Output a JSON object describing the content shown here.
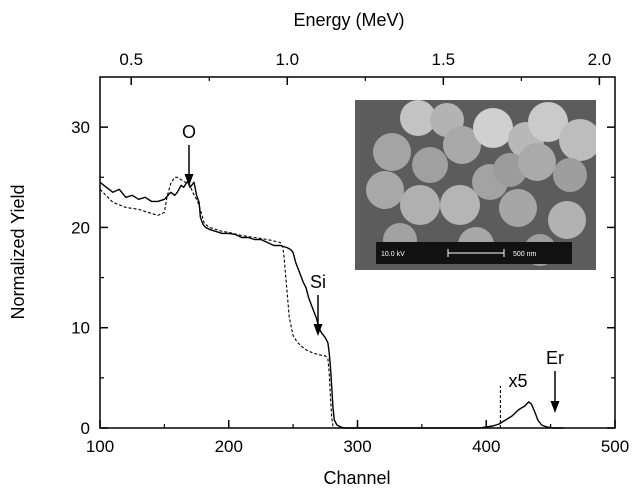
{
  "chart_data": {
    "type": "line",
    "xlabel": "Channel",
    "ylabel": "Normalized Yield",
    "top_axis_label": "Energy (MeV)",
    "xlim": [
      100,
      500
    ],
    "ylim": [
      0,
      35
    ],
    "top_axis_lim": [
      0.4,
      2.05
    ],
    "x_ticks": [
      "100",
      "200",
      "300",
      "400",
      "500"
    ],
    "y_ticks": [
      "0",
      "10",
      "20",
      "30"
    ],
    "top_ticks": [
      "0.5",
      "1.0",
      "1.5",
      "2.0"
    ],
    "grid": false,
    "series": [
      {
        "style": "solid",
        "points": [
          [
            100,
            24.5
          ],
          [
            105,
            24
          ],
          [
            110,
            23.5
          ],
          [
            115,
            23.8
          ],
          [
            120,
            23
          ],
          [
            125,
            23.2
          ],
          [
            130,
            22.8
          ],
          [
            135,
            23
          ],
          [
            140,
            22.6
          ],
          [
            145,
            22.6
          ],
          [
            150,
            22.8
          ],
          [
            155,
            23.5
          ],
          [
            158,
            23.2
          ],
          [
            160,
            23.5
          ],
          [
            163,
            24.2
          ],
          [
            165,
            24
          ],
          [
            168,
            24.6
          ],
          [
            170,
            24
          ],
          [
            173,
            24.5
          ],
          [
            175,
            23.2
          ],
          [
            177,
            22.5
          ],
          [
            178,
            21
          ],
          [
            180,
            20.3
          ],
          [
            182,
            20
          ],
          [
            185,
            19.8
          ],
          [
            190,
            19.6
          ],
          [
            195,
            19.4
          ],
          [
            200,
            19.4
          ],
          [
            205,
            19.3
          ],
          [
            210,
            19
          ],
          [
            215,
            19
          ],
          [
            220,
            18.8
          ],
          [
            225,
            18.8
          ],
          [
            230,
            18.5
          ],
          [
            235,
            18.2
          ],
          [
            240,
            18.2
          ],
          [
            245,
            18
          ],
          [
            248,
            17.8
          ],
          [
            250,
            17.5
          ],
          [
            252,
            16.5
          ],
          [
            255,
            15.5
          ],
          [
            258,
            14.5
          ],
          [
            260,
            14
          ],
          [
            262,
            13
          ],
          [
            265,
            12
          ],
          [
            268,
            11
          ],
          [
            270,
            10
          ],
          [
            272,
            9.5
          ],
          [
            275,
            9
          ],
          [
            277,
            8.5
          ],
          [
            278,
            7.5
          ],
          [
            279,
            6
          ],
          [
            280,
            4
          ],
          [
            281,
            2
          ],
          [
            282,
            0.8
          ],
          [
            284,
            0.3
          ],
          [
            287,
            0.1
          ],
          [
            290,
            0
          ],
          [
            300,
            0
          ],
          [
            350,
            0
          ],
          [
            395,
            0
          ],
          [
            400,
            0.1
          ],
          [
            405,
            0.2
          ],
          [
            410,
            0.4
          ],
          [
            415,
            0.8
          ],
          [
            420,
            1.2
          ],
          [
            425,
            1.8
          ],
          [
            430,
            2.2
          ],
          [
            433,
            2.6
          ],
          [
            435,
            2.4
          ],
          [
            438,
            1.5
          ],
          [
            440,
            0.8
          ],
          [
            443,
            0.3
          ],
          [
            447,
            0.1
          ],
          [
            452,
            0
          ],
          [
            460,
            0
          ]
        ]
      },
      {
        "style": "dashed",
        "points": [
          [
            100,
            23.8
          ],
          [
            110,
            22.5
          ],
          [
            120,
            22
          ],
          [
            130,
            21.8
          ],
          [
            140,
            21.4
          ],
          [
            145,
            21.2
          ],
          [
            150,
            21.5
          ],
          [
            152,
            23
          ],
          [
            155,
            24.4
          ],
          [
            158,
            25
          ],
          [
            160,
            25
          ],
          [
            165,
            24.6
          ],
          [
            170,
            24.2
          ],
          [
            172,
            23.5
          ],
          [
            175,
            22.8
          ],
          [
            177,
            22.2
          ],
          [
            179,
            21.3
          ],
          [
            181,
            20.4
          ],
          [
            185,
            20
          ],
          [
            190,
            19.8
          ],
          [
            195,
            19.6
          ],
          [
            200,
            19.5
          ],
          [
            210,
            19.2
          ],
          [
            220,
            19
          ],
          [
            230,
            18.8
          ],
          [
            240,
            18.5
          ],
          [
            242,
            18
          ],
          [
            243,
            17
          ],
          [
            245,
            14
          ],
          [
            247,
            11
          ],
          [
            250,
            9.2
          ],
          [
            253,
            8.6
          ],
          [
            256,
            8.2
          ],
          [
            260,
            7.8
          ],
          [
            265,
            7.5
          ],
          [
            270,
            7.3
          ],
          [
            275,
            7.2
          ],
          [
            277,
            6.9
          ],
          [
            278,
            5.5
          ],
          [
            279,
            3
          ],
          [
            280,
            1
          ],
          [
            281,
            0.2
          ],
          [
            283,
            0
          ]
        ]
      },
      {
        "style": "dashed",
        "points": [
          [
            411,
            0
          ],
          [
            411,
            4.2
          ]
        ]
      }
    ]
  },
  "annotations": {
    "o_label": "O",
    "si_label": "Si",
    "er_label": "Er",
    "x5_label": "x5"
  },
  "inset": {
    "scale_voltage": "10.0 kV",
    "scale_length": "500 nm",
    "background_color": "#5c5c5c",
    "sphere_color": "#b9b9b9"
  }
}
